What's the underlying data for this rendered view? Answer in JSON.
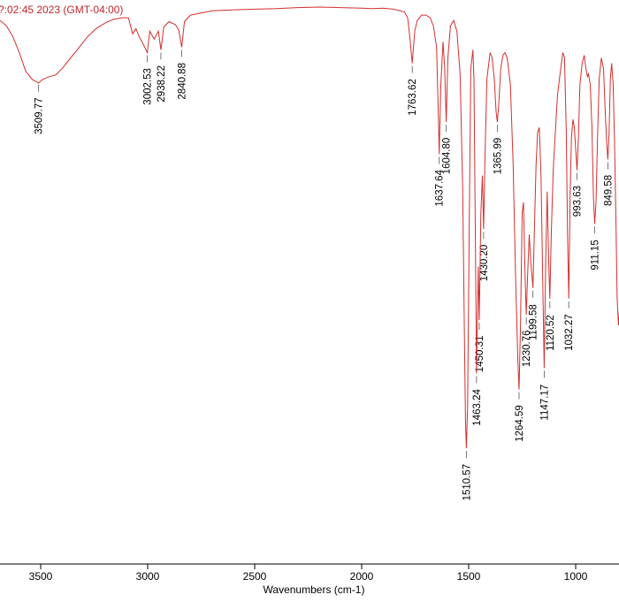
{
  "header_text": "?:02:45 2023 (GMT-04:00)",
  "chart_data": {
    "type": "line",
    "title": "",
    "xlabel": "Wavenumbers (cm-1)",
    "ylabel": "",
    "x_range_visible": [
      3690,
      790
    ],
    "y_range": [
      0,
      100
    ],
    "grid": false,
    "line_color": "#d32f2f",
    "x_ticks": [
      3500,
      3000,
      2500,
      2000,
      1500,
      1000
    ],
    "peak_labels": [
      "3509.77",
      "3002.53",
      "2938.22",
      "2840.88",
      "1763.62",
      "1637.64",
      "1604.80",
      "1510.57",
      "1463.24",
      "1450.31",
      "1430.20",
      "1365.99",
      "1264.59",
      "1230.76",
      "1199.58",
      "1147.17",
      "1120.52",
      "1032.27",
      "993.63",
      "911.15",
      "849.58"
    ],
    "peaks": [
      {
        "x": 3509.77,
        "y": 85.5,
        "label": "3509.77"
      },
      {
        "x": 3002.53,
        "y": 91,
        "label": "3002.53"
      },
      {
        "x": 2938.22,
        "y": 91.5,
        "label": "2938.22"
      },
      {
        "x": 2840.88,
        "y": 92,
        "label": "2840.88"
      },
      {
        "x": 1763.62,
        "y": 89,
        "label": "1763.62"
      },
      {
        "x": 1637.64,
        "y": 72,
        "label": "1637.64"
      },
      {
        "x": 1604.8,
        "y": 78,
        "label": "1604.80"
      },
      {
        "x": 1510.57,
        "y": 17,
        "label": "1510.57"
      },
      {
        "x": 1463.24,
        "y": 31,
        "label": "1463.24"
      },
      {
        "x": 1450.31,
        "y": 41,
        "label": "1450.31"
      },
      {
        "x": 1430.2,
        "y": 58,
        "label": "1430.20"
      },
      {
        "x": 1365.99,
        "y": 78,
        "label": "1365.99"
      },
      {
        "x": 1264.59,
        "y": 28,
        "label": "1264.59"
      },
      {
        "x": 1230.76,
        "y": 42,
        "label": "1230.76"
      },
      {
        "x": 1199.58,
        "y": 47,
        "label": "1199.58"
      },
      {
        "x": 1147.17,
        "y": 32,
        "label": "1147.17"
      },
      {
        "x": 1120.52,
        "y": 45,
        "label": "1120.52"
      },
      {
        "x": 1032.27,
        "y": 45,
        "label": "1032.27"
      },
      {
        "x": 993.63,
        "y": 69,
        "label": "993.63"
      },
      {
        "x": 911.15,
        "y": 59,
        "label": "911.15"
      },
      {
        "x": 849.58,
        "y": 71,
        "label": "849.58"
      }
    ],
    "spectrum": [
      [
        3690,
        97
      ],
      [
        3660,
        96
      ],
      [
        3630,
        94
      ],
      [
        3600,
        91
      ],
      [
        3570,
        87.5
      ],
      [
        3540,
        86
      ],
      [
        3510,
        85.3
      ],
      [
        3490,
        86
      ],
      [
        3460,
        86.5
      ],
      [
        3430,
        86.8
      ],
      [
        3400,
        88
      ],
      [
        3360,
        90
      ],
      [
        3320,
        92
      ],
      [
        3280,
        94
      ],
      [
        3240,
        95.5
      ],
      [
        3200,
        96.5
      ],
      [
        3160,
        97.2
      ],
      [
        3120,
        97.5
      ],
      [
        3090,
        97.5
      ],
      [
        3070,
        94.5
      ],
      [
        3055,
        95.5
      ],
      [
        3040,
        94
      ],
      [
        3020,
        92.5
      ],
      [
        3002,
        91
      ],
      [
        2990,
        95
      ],
      [
        2970,
        93.5
      ],
      [
        2950,
        95
      ],
      [
        2938,
        91.5
      ],
      [
        2925,
        95.8
      ],
      [
        2900,
        96.8
      ],
      [
        2870,
        96.2
      ],
      [
        2855,
        95.2
      ],
      [
        2841,
        92
      ],
      [
        2828,
        96.8
      ],
      [
        2800,
        98
      ],
      [
        2700,
        98.8
      ],
      [
        2600,
        99
      ],
      [
        2500,
        99.1
      ],
      [
        2400,
        99.2
      ],
      [
        2300,
        99.4
      ],
      [
        2200,
        99.5
      ],
      [
        2100,
        99.4
      ],
      [
        2000,
        99.3
      ],
      [
        1950,
        99.2
      ],
      [
        1900,
        99.3
      ],
      [
        1850,
        99.1
      ],
      [
        1800,
        98.6
      ],
      [
        1785,
        97.5
      ],
      [
        1775,
        94
      ],
      [
        1763.6,
        89
      ],
      [
        1752,
        95
      ],
      [
        1740,
        97
      ],
      [
        1720,
        98
      ],
      [
        1700,
        98
      ],
      [
        1680,
        97.5
      ],
      [
        1665,
        96
      ],
      [
        1650,
        92
      ],
      [
        1642,
        80
      ],
      [
        1637.6,
        72
      ],
      [
        1630,
        85
      ],
      [
        1620,
        93
      ],
      [
        1612,
        88
      ],
      [
        1604.8,
        78
      ],
      [
        1597,
        90
      ],
      [
        1585,
        96
      ],
      [
        1570,
        97
      ],
      [
        1555,
        95
      ],
      [
        1540,
        87
      ],
      [
        1528,
        66
      ],
      [
        1520,
        38
      ],
      [
        1515,
        22
      ],
      [
        1510.6,
        17
      ],
      [
        1505,
        25
      ],
      [
        1498,
        56
      ],
      [
        1490,
        88
      ],
      [
        1480,
        91.5
      ],
      [
        1475,
        86
      ],
      [
        1468,
        54
      ],
      [
        1463.2,
        31
      ],
      [
        1458,
        44
      ],
      [
        1455,
        51
      ],
      [
        1450.3,
        41
      ],
      [
        1443,
        61
      ],
      [
        1436,
        68
      ],
      [
        1430.2,
        58
      ],
      [
        1424,
        71
      ],
      [
        1415,
        86
      ],
      [
        1400,
        91
      ],
      [
        1390,
        90
      ],
      [
        1380,
        86
      ],
      [
        1372,
        80
      ],
      [
        1366,
        78
      ],
      [
        1360,
        81
      ],
      [
        1350,
        88
      ],
      [
        1340,
        90.5
      ],
      [
        1330,
        91
      ],
      [
        1320,
        90
      ],
      [
        1305,
        85
      ],
      [
        1292,
        70
      ],
      [
        1280,
        48
      ],
      [
        1270,
        33
      ],
      [
        1264.6,
        28
      ],
      [
        1258,
        40
      ],
      [
        1250,
        61
      ],
      [
        1244,
        63
      ],
      [
        1238,
        52
      ],
      [
        1230.8,
        42
      ],
      [
        1224,
        50
      ],
      [
        1217,
        57
      ],
      [
        1210,
        52
      ],
      [
        1199.6,
        47
      ],
      [
        1192,
        59
      ],
      [
        1185,
        70
      ],
      [
        1178,
        76
      ],
      [
        1170,
        77
      ],
      [
        1162,
        68
      ],
      [
        1153,
        46
      ],
      [
        1147.2,
        32
      ],
      [
        1140,
        52
      ],
      [
        1133,
        65
      ],
      [
        1126,
        52
      ],
      [
        1120.5,
        45
      ],
      [
        1114,
        57
      ],
      [
        1105,
        69
      ],
      [
        1095,
        76
      ],
      [
        1085,
        83
      ],
      [
        1070,
        88
      ],
      [
        1060,
        91
      ],
      [
        1052,
        90
      ],
      [
        1044,
        76
      ],
      [
        1038,
        57
      ],
      [
        1032.3,
        45
      ],
      [
        1026,
        64
      ],
      [
        1020,
        75
      ],
      [
        1013,
        78.5
      ],
      [
        1006,
        77
      ],
      [
        1000,
        73
      ],
      [
        993.6,
        69
      ],
      [
        987,
        75
      ],
      [
        980,
        85
      ],
      [
        970,
        89
      ],
      [
        960,
        90.5
      ],
      [
        952,
        88
      ],
      [
        945,
        86.5
      ],
      [
        940,
        87
      ],
      [
        932,
        85
      ],
      [
        924,
        77
      ],
      [
        917,
        64
      ],
      [
        911.2,
        59
      ],
      [
        905,
        63
      ],
      [
        898,
        75
      ],
      [
        890,
        86
      ],
      [
        880,
        90
      ],
      [
        870,
        88
      ],
      [
        862,
        80
      ],
      [
        855,
        74
      ],
      [
        849.6,
        71
      ],
      [
        844,
        76
      ],
      [
        838,
        86
      ],
      [
        832,
        89
      ],
      [
        825,
        85
      ],
      [
        818,
        74
      ],
      [
        812,
        60
      ],
      [
        806,
        45
      ],
      [
        800,
        40
      ],
      [
        795,
        43
      ],
      [
        790,
        50
      ]
    ]
  }
}
